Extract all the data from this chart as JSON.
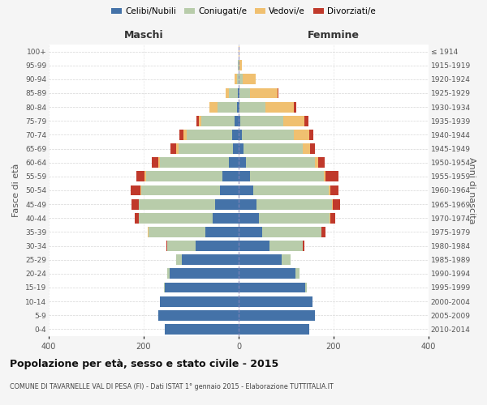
{
  "age_groups": [
    "100+",
    "95-99",
    "90-94",
    "85-89",
    "80-84",
    "75-79",
    "70-74",
    "65-69",
    "60-64",
    "55-59",
    "50-54",
    "45-49",
    "40-44",
    "35-39",
    "30-34",
    "25-29",
    "20-24",
    "15-19",
    "10-14",
    "5-9",
    "0-4"
  ],
  "birth_years": [
    "≤ 1914",
    "1915-1919",
    "1920-1924",
    "1925-1929",
    "1930-1934",
    "1935-1939",
    "1940-1944",
    "1945-1949",
    "1950-1954",
    "1955-1959",
    "1960-1964",
    "1965-1969",
    "1970-1974",
    "1975-1979",
    "1980-1984",
    "1985-1989",
    "1990-1994",
    "1995-1999",
    "2000-2004",
    "2005-2009",
    "2010-2014"
  ],
  "maschi": {
    "celibi": [
      0,
      0,
      0,
      2,
      4,
      8,
      14,
      12,
      20,
      35,
      40,
      50,
      55,
      70,
      90,
      120,
      145,
      155,
      165,
      170,
      155
    ],
    "coniugati": [
      0,
      1,
      4,
      18,
      40,
      70,
      95,
      115,
      145,
      160,
      165,
      160,
      155,
      120,
      60,
      12,
      5,
      2,
      0,
      0,
      0
    ],
    "vedovi": [
      0,
      1,
      5,
      8,
      18,
      6,
      8,
      4,
      4,
      3,
      2,
      1,
      0,
      1,
      0,
      0,
      0,
      0,
      0,
      0,
      0
    ],
    "divorziati": [
      0,
      0,
      0,
      0,
      0,
      5,
      8,
      12,
      14,
      18,
      20,
      14,
      8,
      1,
      2,
      0,
      0,
      0,
      0,
      0,
      0
    ]
  },
  "femmine": {
    "nubili": [
      0,
      0,
      0,
      2,
      2,
      4,
      6,
      10,
      16,
      24,
      30,
      38,
      42,
      50,
      65,
      90,
      120,
      140,
      155,
      160,
      148
    ],
    "coniugate": [
      0,
      2,
      8,
      22,
      55,
      90,
      110,
      125,
      145,
      155,
      160,
      158,
      150,
      125,
      70,
      20,
      8,
      3,
      0,
      0,
      0
    ],
    "vedove": [
      1,
      4,
      28,
      58,
      60,
      45,
      32,
      15,
      6,
      4,
      3,
      2,
      1,
      0,
      0,
      0,
      0,
      0,
      0,
      0,
      0
    ],
    "divorziate": [
      0,
      0,
      0,
      2,
      4,
      8,
      10,
      10,
      14,
      28,
      18,
      16,
      10,
      8,
      4,
      0,
      0,
      0,
      0,
      0,
      0
    ]
  },
  "colors": {
    "celibi": "#4472a8",
    "coniugati": "#b8ccaa",
    "vedovi": "#f0c070",
    "divorziati": "#c0392b"
  },
  "legend_labels": [
    "Celibi/Nubili",
    "Coniugati/e",
    "Vedovi/e",
    "Divorziati/e"
  ],
  "title": "Popolazione per età, sesso e stato civile - 2015",
  "subtitle": "COMUNE DI TAVARNELLE VAL DI PESA (FI) - Dati ISTAT 1° gennaio 2015 - Elaborazione TUTTITALIA.IT",
  "xlabel_left": "Maschi",
  "xlabel_right": "Femmine",
  "ylabel_left": "Fasce di età",
  "ylabel_right": "Anni di nascita",
  "xlim": 400,
  "bg_color": "#f5f5f5",
  "plot_bg": "#ffffff",
  "grid_color": "#cccccc"
}
